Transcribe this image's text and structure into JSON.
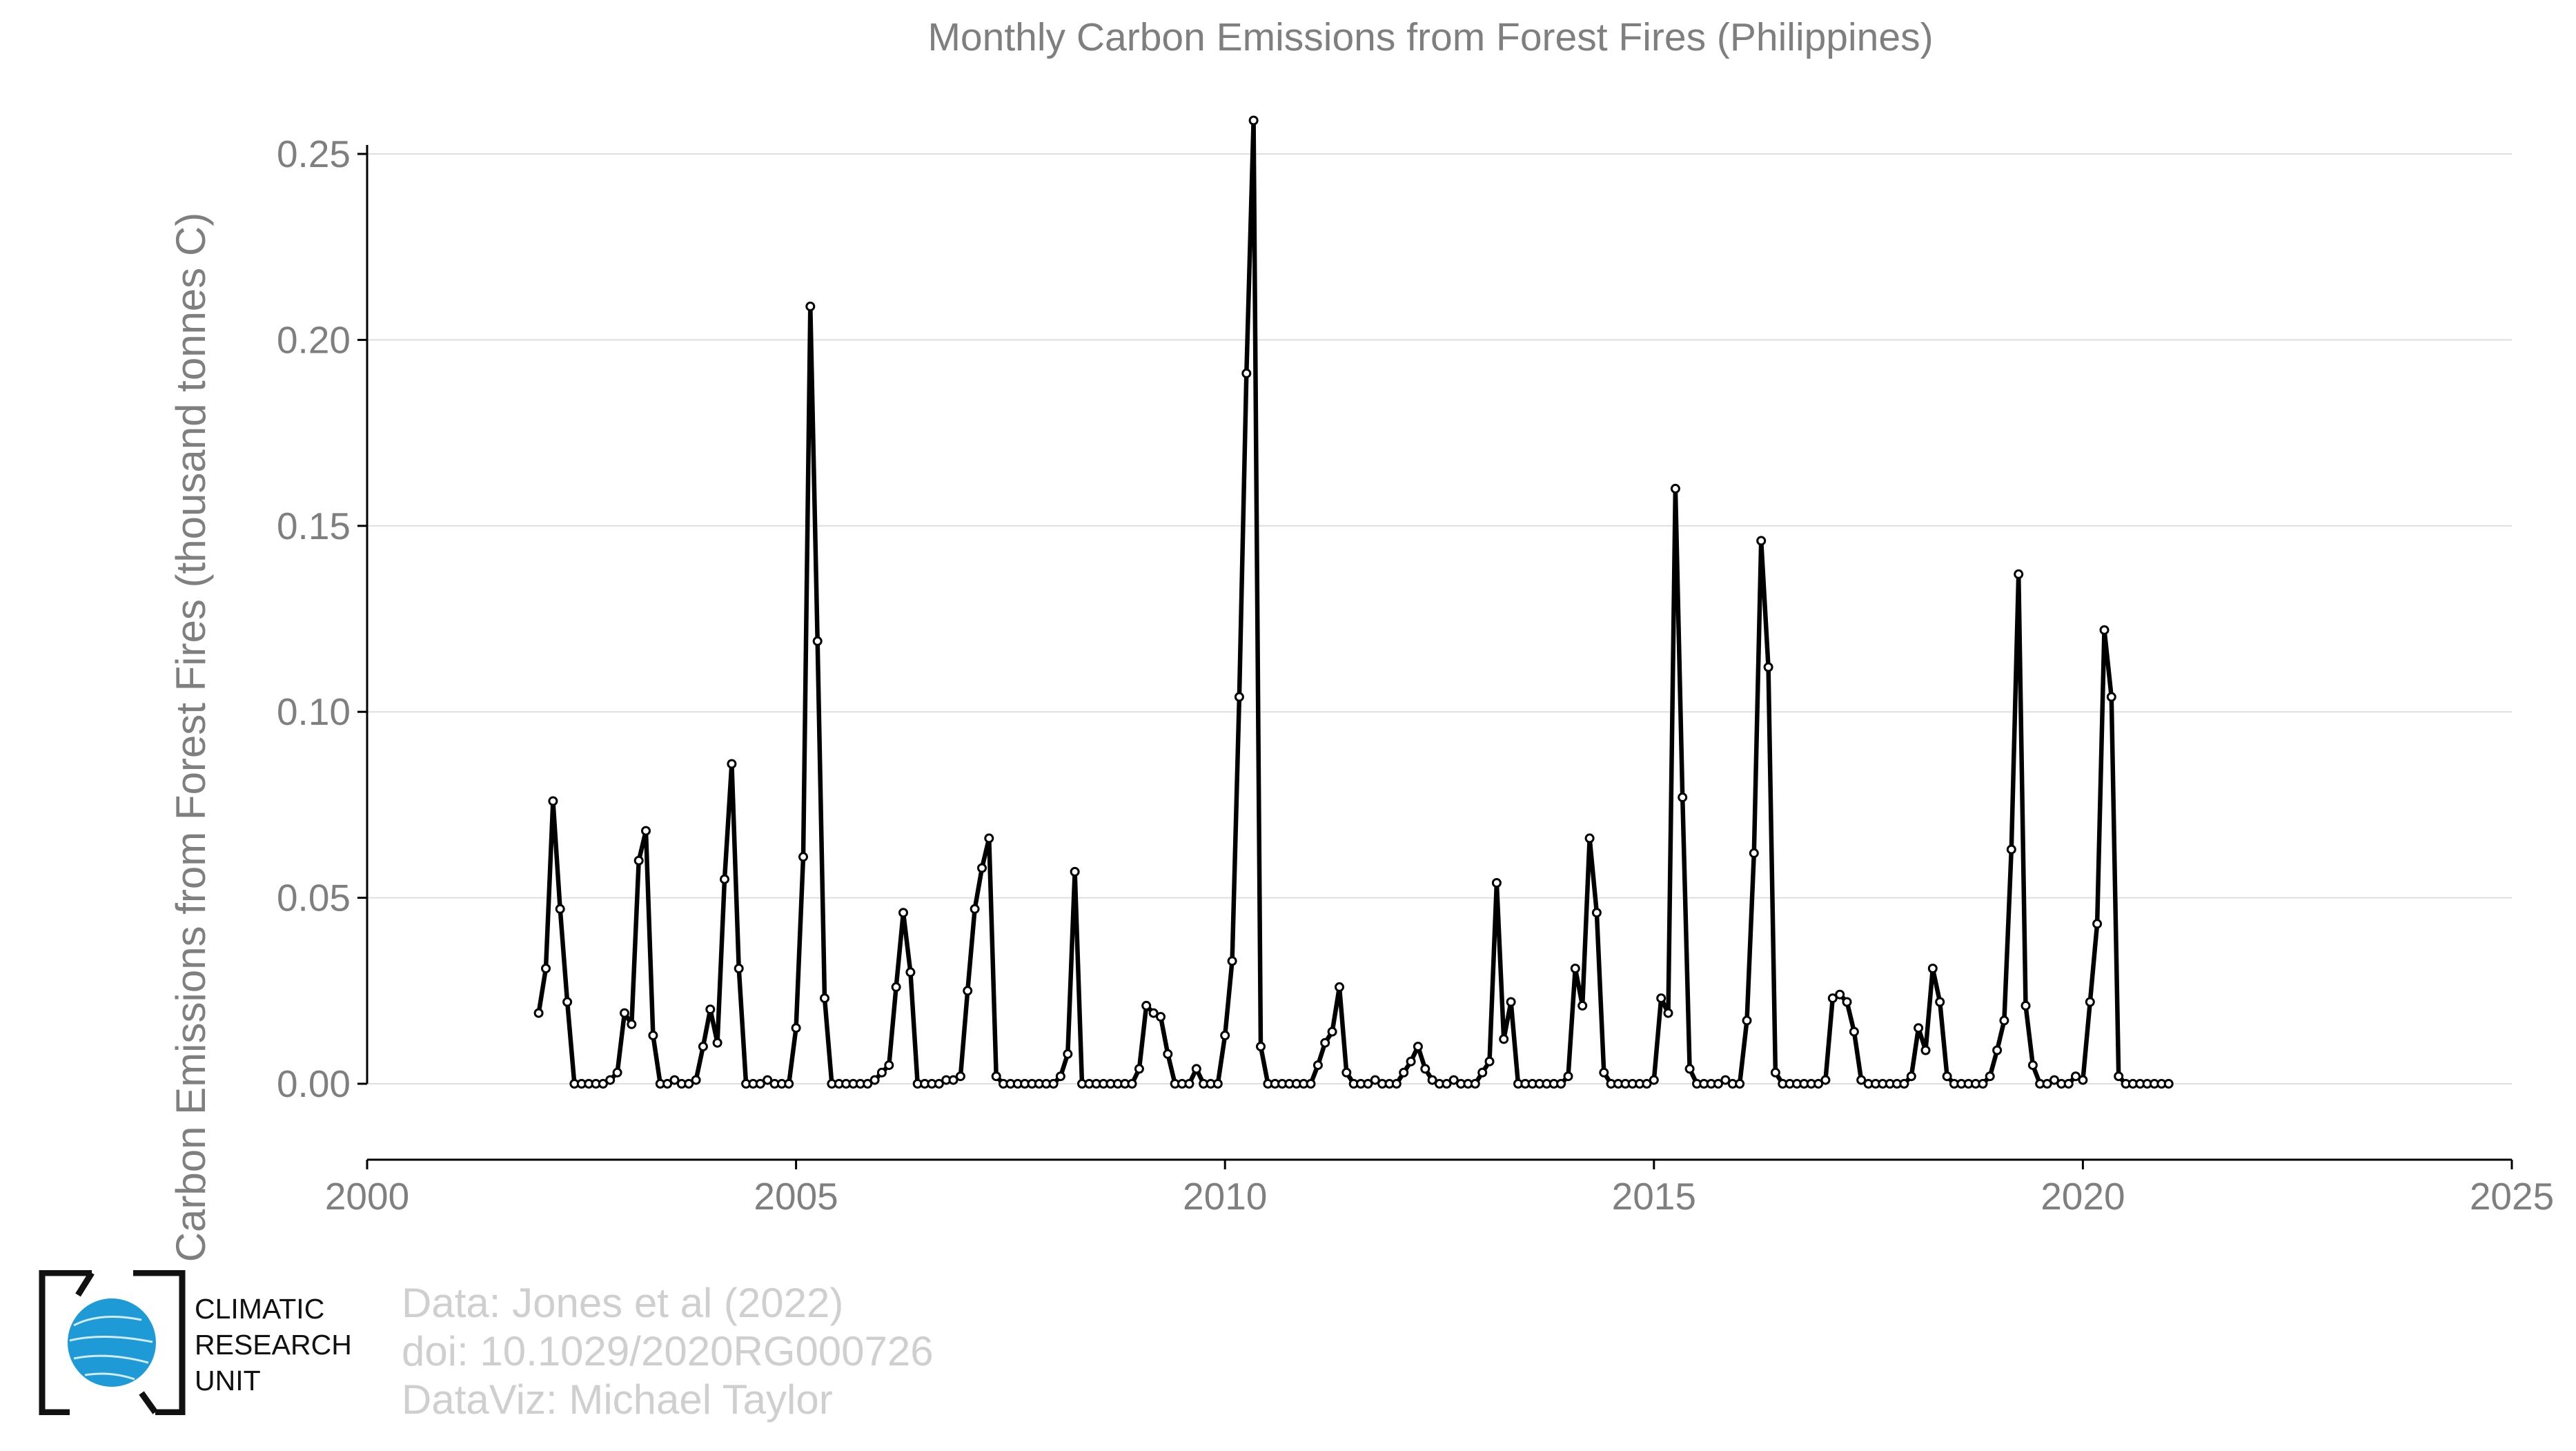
{
  "chart_data": {
    "type": "line",
    "title": "Monthly Carbon Emissions from Forest Fires (Philippines)",
    "xlabel": "",
    "ylabel": "Carbon Emissions from Forest Fires (thousand tonnes C)",
    "xlim": [
      2000,
      2025
    ],
    "ylim": [
      -0.02,
      0.27
    ],
    "xticks": [
      "2000",
      "2005",
      "2010",
      "2015",
      "2020",
      "2025"
    ],
    "yticks": [
      "0.00",
      "0.05",
      "0.10",
      "0.15",
      "0.20",
      "0.25"
    ],
    "grid": "horizontal",
    "x_start": 2002.0,
    "x_step_months": 1,
    "series": [
      {
        "values": [
          0.019,
          0.031,
          0.076,
          0.047,
          0.022,
          0.0,
          0.0,
          0.0,
          0.0,
          0.0,
          0.001,
          0.003,
          0.019,
          0.016,
          0.06,
          0.068,
          0.013,
          0.0,
          0.0,
          0.001,
          0.0,
          0.0,
          0.001,
          0.01,
          0.02,
          0.011,
          0.055,
          0.086,
          0.031,
          0.0,
          0.0,
          0.0,
          0.001,
          0.0,
          0.0,
          0.0,
          0.015,
          0.061,
          0.209,
          0.119,
          0.023,
          0.0,
          0.0,
          0.0,
          0.0,
          0.0,
          0.0,
          0.001,
          0.003,
          0.005,
          0.026,
          0.046,
          0.03,
          0.0,
          0.0,
          0.0,
          0.0,
          0.001,
          0.001,
          0.002,
          0.025,
          0.047,
          0.058,
          0.066,
          0.002,
          0.0,
          0.0,
          0.0,
          0.0,
          0.0,
          0.0,
          0.0,
          0.0,
          0.002,
          0.008,
          0.057,
          0.0,
          0.0,
          0.0,
          0.0,
          0.0,
          0.0,
          0.0,
          0.0,
          0.004,
          0.021,
          0.019,
          0.018,
          0.008,
          0.0,
          0.0,
          0.0,
          0.004,
          0.0,
          0.0,
          0.0,
          0.013,
          0.033,
          0.104,
          0.191,
          0.259,
          0.01,
          0.0,
          0.0,
          0.0,
          0.0,
          0.0,
          0.0,
          0.0,
          0.005,
          0.011,
          0.014,
          0.026,
          0.003,
          0.0,
          0.0,
          0.0,
          0.001,
          0.0,
          0.0,
          0.0,
          0.003,
          0.006,
          0.01,
          0.004,
          0.001,
          0.0,
          0.0,
          0.001,
          0.0,
          0.0,
          0.0,
          0.003,
          0.006,
          0.054,
          0.012,
          0.022,
          0.0,
          0.0,
          0.0,
          0.0,
          0.0,
          0.0,
          0.0,
          0.002,
          0.031,
          0.021,
          0.066,
          0.046,
          0.003,
          0.0,
          0.0,
          0.0,
          0.0,
          0.0,
          0.0,
          0.001,
          0.023,
          0.019,
          0.16,
          0.077,
          0.004,
          0.0,
          0.0,
          0.0,
          0.0,
          0.001,
          0.0,
          0.0,
          0.017,
          0.062,
          0.146,
          0.112,
          0.003,
          0.0,
          0.0,
          0.0,
          0.0,
          0.0,
          0.0,
          0.001,
          0.023,
          0.024,
          0.022,
          0.014,
          0.001,
          0.0,
          0.0,
          0.0,
          0.0,
          0.0,
          0.0,
          0.002,
          0.015,
          0.009,
          0.031,
          0.022,
          0.002,
          0.0,
          0.0,
          0.0,
          0.0,
          0.0,
          0.002,
          0.009,
          0.017,
          0.063,
          0.137,
          0.021,
          0.005,
          0.0,
          0.0,
          0.001,
          0.0,
          0.0,
          0.002,
          0.001,
          0.022,
          0.043,
          0.122,
          0.104,
          0.002,
          0.0,
          0.0,
          0.0,
          0.0,
          0.0,
          0.0,
          0.0
        ]
      }
    ]
  },
  "credits": {
    "line1": "Data: Jones et al (2022)",
    "line2": "doi: 10.1029/2020RG000726",
    "line3": "DataViz: Michael Taylor"
  },
  "logo": {
    "line1": "CLIMATIC",
    "line2": "RESEARCH",
    "line3": "UNIT",
    "accent_color": "#1e9bd7"
  }
}
